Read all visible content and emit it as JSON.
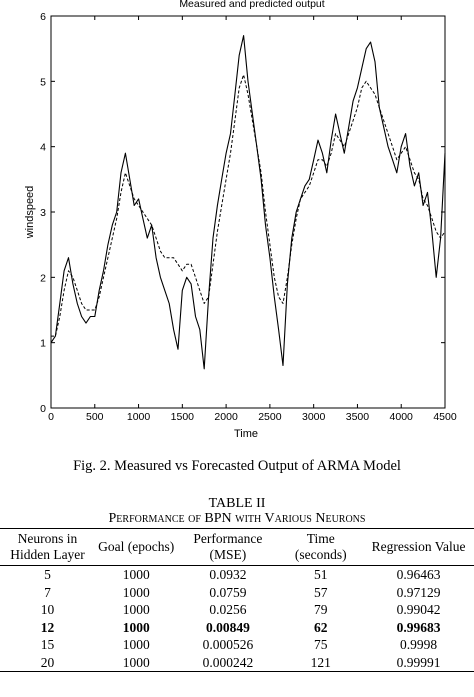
{
  "chart_data": {
    "type": "line",
    "title": "Measured and predicted output",
    "xlabel": "Time",
    "ylabel": "windspeed",
    "xlim": [
      0,
      4500
    ],
    "ylim": [
      0,
      6
    ],
    "xticks": [
      0,
      500,
      1000,
      1500,
      2000,
      2500,
      3000,
      3500,
      4000,
      4500
    ],
    "yticks": [
      0,
      1,
      2,
      3,
      4,
      5,
      6
    ],
    "grid": false,
    "series": [
      {
        "style": "solid",
        "x": [
          0,
          50,
          100,
          150,
          200,
          250,
          300,
          350,
          400,
          450,
          500,
          550,
          600,
          650,
          700,
          750,
          800,
          850,
          900,
          950,
          1000,
          1050,
          1100,
          1150,
          1200,
          1250,
          1300,
          1350,
          1400,
          1450,
          1500,
          1550,
          1600,
          1650,
          1700,
          1750,
          1800,
          1850,
          1900,
          1950,
          2000,
          2050,
          2100,
          2150,
          2200,
          2250,
          2300,
          2350,
          2400,
          2450,
          2500,
          2550,
          2600,
          2650,
          2700,
          2750,
          2800,
          2850,
          2900,
          2950,
          3000,
          3050,
          3100,
          3150,
          3200,
          3250,
          3300,
          3350,
          3400,
          3450,
          3500,
          3550,
          3600,
          3650,
          3700,
          3750,
          3800,
          3850,
          3900,
          3950,
          4000,
          4050,
          4100,
          4150,
          4200,
          4250,
          4300,
          4350,
          4400,
          4450,
          4500
        ],
        "y": [
          1.0,
          1.1,
          1.6,
          2.1,
          2.3,
          1.9,
          1.6,
          1.4,
          1.3,
          1.4,
          1.4,
          1.8,
          2.1,
          2.5,
          2.8,
          3.0,
          3.6,
          3.9,
          3.5,
          3.1,
          3.2,
          2.9,
          2.6,
          2.8,
          2.3,
          2.0,
          1.8,
          1.6,
          1.2,
          0.9,
          1.8,
          2.0,
          1.9,
          1.4,
          1.2,
          0.6,
          1.7,
          2.6,
          3.1,
          3.5,
          3.9,
          4.2,
          4.8,
          5.4,
          5.7,
          5.0,
          4.5,
          4.0,
          3.5,
          2.8,
          2.3,
          1.7,
          1.2,
          0.65,
          1.9,
          2.6,
          3.0,
          3.2,
          3.4,
          3.5,
          3.8,
          4.1,
          3.9,
          3.6,
          4.1,
          4.5,
          4.2,
          3.9,
          4.3,
          4.7,
          4.9,
          5.2,
          5.5,
          5.6,
          5.3,
          4.6,
          4.3,
          4.0,
          3.8,
          3.6,
          4.0,
          4.2,
          3.7,
          3.4,
          3.6,
          3.1,
          3.3,
          2.7,
          2.0,
          2.6,
          3.9
        ]
      },
      {
        "style": "dashed",
        "x": [
          0,
          50,
          100,
          150,
          200,
          250,
          300,
          350,
          400,
          450,
          500,
          550,
          600,
          650,
          700,
          750,
          800,
          850,
          900,
          950,
          1000,
          1050,
          1100,
          1150,
          1200,
          1250,
          1300,
          1350,
          1400,
          1450,
          1500,
          1550,
          1600,
          1650,
          1700,
          1750,
          1800,
          1850,
          1900,
          1950,
          2000,
          2050,
          2100,
          2150,
          2200,
          2250,
          2300,
          2350,
          2400,
          2450,
          2500,
          2550,
          2600,
          2650,
          2700,
          2750,
          2800,
          2850,
          2900,
          2950,
          3000,
          3050,
          3100,
          3150,
          3200,
          3250,
          3300,
          3350,
          3400,
          3450,
          3500,
          3550,
          3600,
          3650,
          3700,
          3750,
          3800,
          3850,
          3900,
          3950,
          4000,
          4050,
          4100,
          4150,
          4200,
          4250,
          4300,
          4350,
          4400,
          4450,
          4500
        ],
        "y": [
          1.1,
          1.1,
          1.4,
          1.8,
          2.1,
          2.0,
          1.8,
          1.6,
          1.5,
          1.5,
          1.5,
          1.7,
          2.0,
          2.3,
          2.6,
          2.9,
          3.3,
          3.6,
          3.4,
          3.2,
          3.1,
          3.0,
          2.9,
          2.8,
          2.6,
          2.4,
          2.3,
          2.3,
          2.3,
          2.2,
          2.1,
          2.2,
          2.2,
          2.0,
          1.8,
          1.6,
          1.7,
          2.2,
          2.7,
          3.1,
          3.5,
          3.9,
          4.4,
          4.9,
          5.1,
          4.8,
          4.4,
          4.0,
          3.6,
          3.0,
          2.5,
          2.0,
          1.7,
          1.6,
          2.0,
          2.5,
          2.9,
          3.2,
          3.3,
          3.4,
          3.6,
          3.8,
          3.8,
          3.7,
          3.9,
          4.2,
          4.1,
          4.0,
          4.2,
          4.4,
          4.6,
          4.9,
          5.0,
          4.9,
          4.8,
          4.6,
          4.4,
          4.2,
          4.0,
          3.8,
          3.9,
          4.0,
          3.8,
          3.6,
          3.5,
          3.2,
          3.1,
          2.9,
          2.7,
          2.6,
          2.7
        ]
      }
    ]
  },
  "figure": {
    "caption": "Fig. 2. Measured vs Forecasted Output of ARMA Model"
  },
  "table": {
    "title": "TABLE II",
    "subtitle": "Performance of BPN with Various Neurons",
    "columns": [
      "Neurons in Hidden Layer",
      "Goal (epochs)",
      "Performance (MSE)",
      "Time (seconds)",
      "Regression Value"
    ],
    "rows": [
      [
        "5",
        "1000",
        "0.0932",
        "51",
        "0.96463"
      ],
      [
        "7",
        "1000",
        "0.0759",
        "57",
        "0.97129"
      ],
      [
        "10",
        "1000",
        "0.0256",
        "79",
        "0.99042"
      ],
      [
        "12",
        "1000",
        "0.00849",
        "62",
        "0.99683"
      ],
      [
        "15",
        "1000",
        "0.000526",
        "75",
        "0.9998"
      ],
      [
        "20",
        "1000",
        "0.000242",
        "121",
        "0.99991"
      ]
    ],
    "bold_row_index": 3
  }
}
